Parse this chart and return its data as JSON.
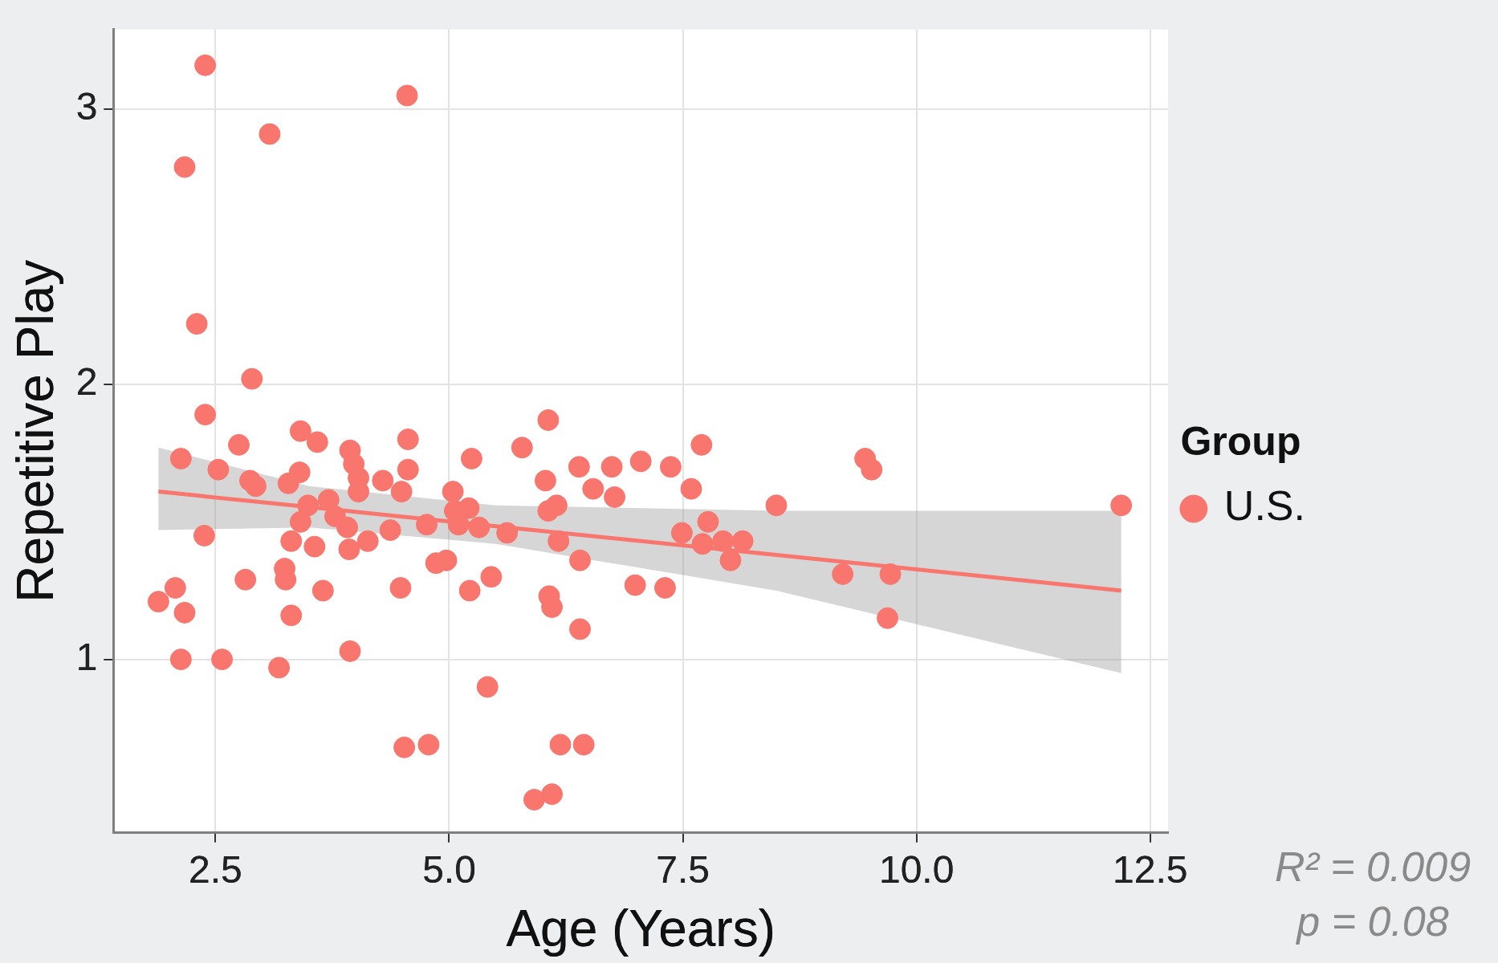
{
  "chart_data": {
    "type": "scatter",
    "xlabel": "Age (Years)",
    "ylabel": "Repetitive Play",
    "legend_title": "Group",
    "legend": "right",
    "grid": true,
    "marker": "circle",
    "xlim": [
      1.41,
      12.69
    ],
    "ylim": [
      0.37,
      3.29
    ],
    "xticks": [
      2.5,
      {
        "value": 5,
        "label": "5.0"
      },
      7.5,
      {
        "value": 10,
        "label": "10.0"
      },
      12.5
    ],
    "yticks": [
      1,
      2,
      3
    ],
    "annotations": [
      "R² = 0.009",
      "p = 0.08"
    ],
    "series": [
      {
        "name": "U.S.",
        "color": "#f8766d",
        "x": [
          2.39,
          4.55,
          3.08,
          2.17,
          2.3,
          2.89,
          2.39,
          2.13,
          2.53,
          2.75,
          2.87,
          2.93,
          2.38,
          1.89,
          2.07,
          2.17,
          2.13,
          2.57,
          2.82,
          3.18,
          3.24,
          3.25,
          3.31,
          3.28,
          3.4,
          3.41,
          3.59,
          3.31,
          3.41,
          3.49,
          3.56,
          3.65,
          3.71,
          3.78,
          3.91,
          3.94,
          3.98,
          4.03,
          4.03,
          3.93,
          4.13,
          3.94,
          4.29,
          4.37,
          4.49,
          4.56,
          4.56,
          4.48,
          4.52,
          4.78,
          4.76,
          4.86,
          4.97,
          5.04,
          5.06,
          5.1,
          5.21,
          5.24,
          5.22,
          5.32,
          5.45,
          5.41,
          5.62,
          5.78,
          5.91,
          6.1,
          6.06,
          6.03,
          6.06,
          6.15,
          6.17,
          6.07,
          6.1,
          6.19,
          6.44,
          6.4,
          6.4,
          6.39,
          6.54,
          6.74,
          6.77,
          7.05,
          6.99,
          7.31,
          7.37,
          7.49,
          7.59,
          7.7,
          7.77,
          7.71,
          7.93,
          8.01,
          8.14,
          8.5,
          9.21,
          9.45,
          9.52,
          9.72,
          9.69,
          12.19
        ],
        "values": [
          3.16,
          3.05,
          2.91,
          2.79,
          2.22,
          2.02,
          1.89,
          1.73,
          1.69,
          1.78,
          1.65,
          1.63,
          1.45,
          1.21,
          1.26,
          1.17,
          1,
          1,
          1.29,
          0.97,
          1.33,
          1.29,
          1.16,
          1.64,
          1.68,
          1.83,
          1.79,
          1.43,
          1.5,
          1.56,
          1.41,
          1.25,
          1.58,
          1.52,
          1.48,
          1.76,
          1.71,
          1.66,
          1.61,
          1.4,
          1.43,
          1.03,
          1.65,
          1.47,
          1.61,
          1.8,
          1.69,
          1.26,
          0.68,
          0.69,
          1.49,
          1.35,
          1.36,
          1.61,
          1.54,
          1.49,
          1.55,
          1.73,
          1.25,
          1.48,
          1.3,
          0.9,
          1.46,
          1.77,
          0.49,
          0.51,
          1.87,
          1.65,
          1.54,
          1.56,
          1.43,
          1.23,
          1.19,
          0.69,
          0.69,
          1.36,
          1.11,
          1.7,
          1.62,
          1.7,
          1.59,
          1.72,
          1.27,
          1.26,
          1.7,
          1.46,
          1.62,
          1.78,
          1.5,
          1.42,
          1.43,
          1.36,
          1.43,
          1.56,
          1.31,
          1.73,
          1.69,
          1.31,
          1.15,
          1.56
        ]
      },
      {
        "type": "line",
        "marker": "none",
        "color": "#f8766d",
        "x": [
          1.89,
          3.5,
          5.5,
          8.5,
          12.19
        ],
        "values": [
          1.61,
          1.554,
          1.484,
          1.38,
          1.25
        ],
        "lower": [
          1.47,
          1.48,
          1.42,
          1.25,
          0.95
        ],
        "upper": [
          1.77,
          1.63,
          1.56,
          1.54,
          1.54
        ]
      }
    ]
  }
}
